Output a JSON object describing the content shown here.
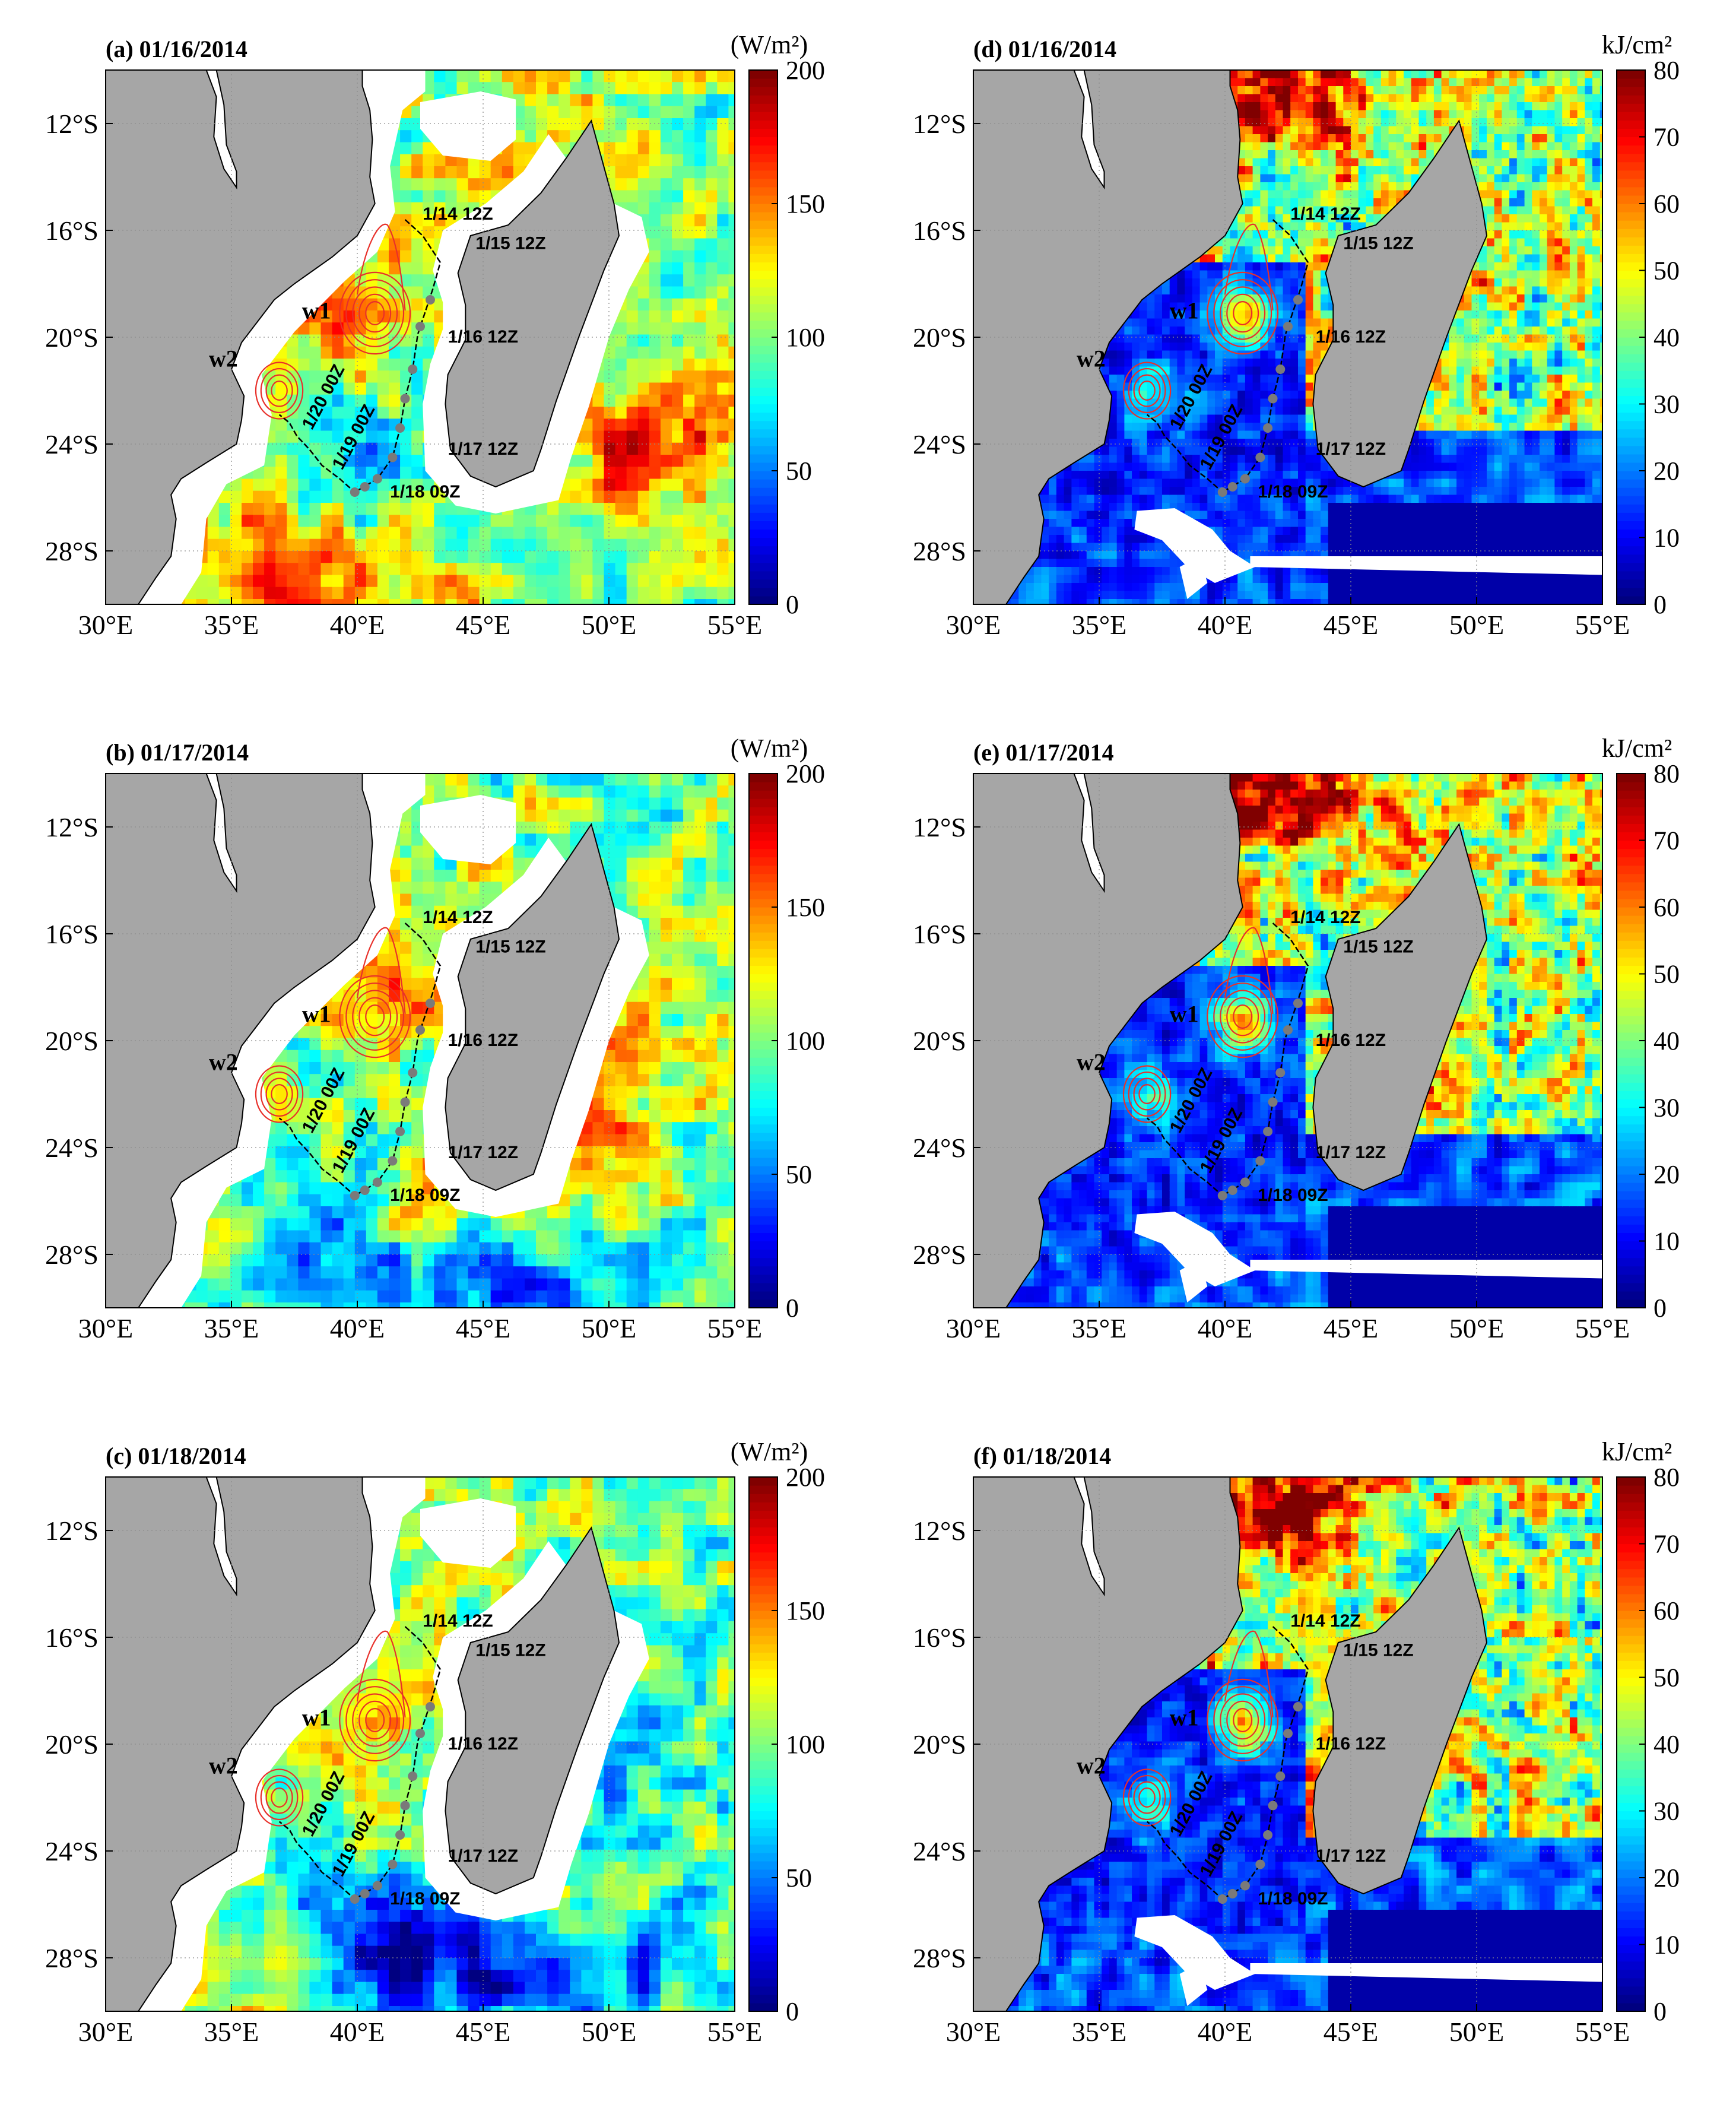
{
  "figure": {
    "panels": [
      {
        "id": "a",
        "title": "(a) 01/16/2014",
        "variable": "heat_flux",
        "unit": "(W/m²)"
      },
      {
        "id": "d",
        "title": "(d) 01/16/2014",
        "variable": "heat_content",
        "unit": "kJ/cm²"
      },
      {
        "id": "b",
        "title": "(b) 01/17/2014",
        "variable": "heat_flux",
        "unit": "(W/m²)"
      },
      {
        "id": "e",
        "title": "(e) 01/17/2014",
        "variable": "heat_content",
        "unit": "kJ/cm²"
      },
      {
        "id": "c",
        "title": "(c) 01/18/2014",
        "variable": "heat_flux",
        "unit": "(W/m²)"
      },
      {
        "id": "f",
        "title": "(f) 01/18/2014",
        "variable": "heat_content",
        "unit": "kJ/cm²"
      }
    ],
    "lon_ticks": [
      "30°E",
      "35°E",
      "40°E",
      "45°E",
      "50°E",
      "55°E"
    ],
    "lat_ticks": [
      "12°S",
      "16°S",
      "20°S",
      "24°S",
      "28°S"
    ],
    "lon_range": [
      30,
      55
    ],
    "lat_range": [
      -30,
      -10
    ],
    "colorbar_flux": {
      "ticks": [
        "0",
        "50",
        "100",
        "150",
        "200"
      ],
      "range": [
        0,
        200
      ]
    },
    "colorbar_ohc": {
      "ticks": [
        "0",
        "10",
        "20",
        "30",
        "40",
        "50",
        "60",
        "70",
        "80"
      ],
      "range": [
        0,
        80
      ]
    },
    "track_labels": [
      "1/14 12Z",
      "1/15 12Z",
      "1/16 12Z",
      "1/17 12Z",
      "1/18 09Z",
      "1/19 00Z",
      "1/20 00Z"
    ],
    "eddy_labels": [
      "w1",
      "w2"
    ],
    "colors": {
      "land": "#a6a6a6",
      "contour": "#e8302a",
      "track": "#000000",
      "track_dots": "#7a7a7a"
    }
  }
}
